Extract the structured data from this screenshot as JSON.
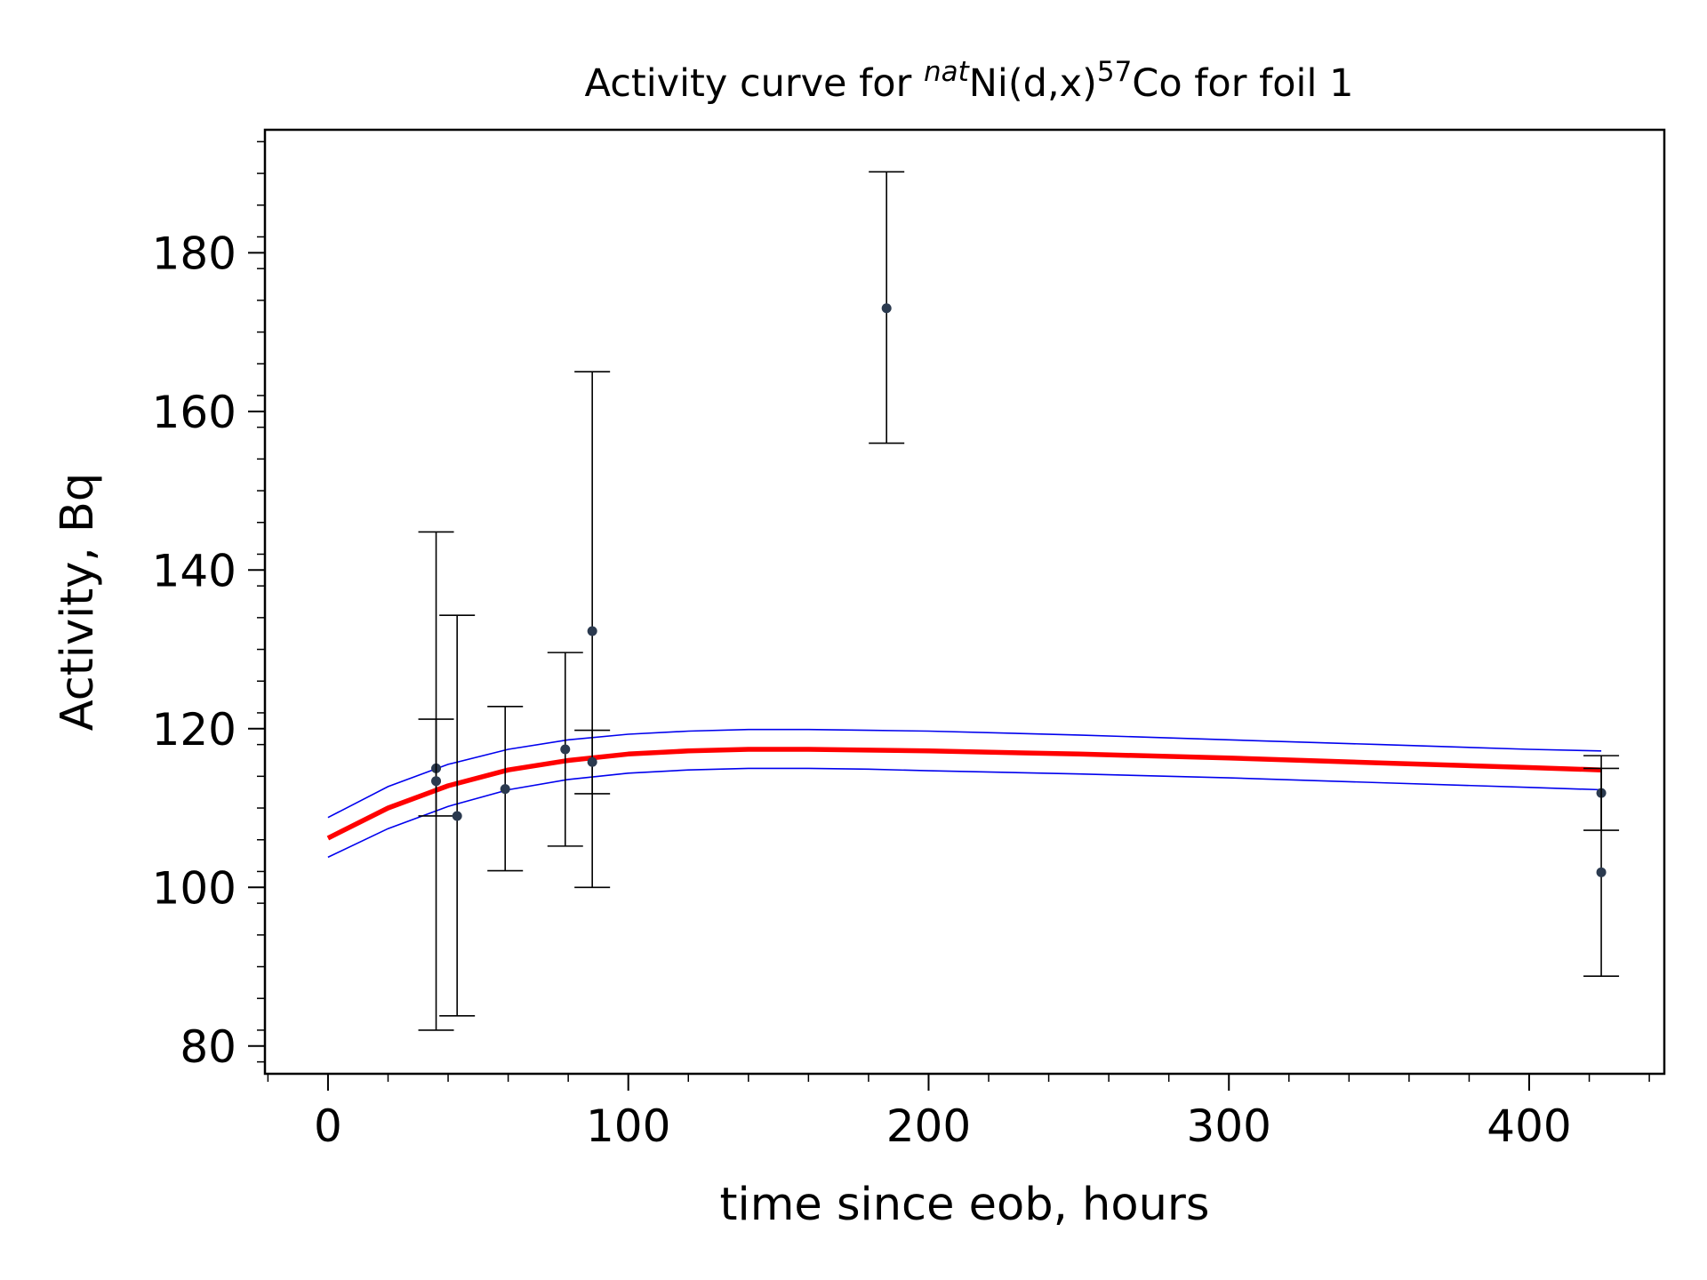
{
  "chart_data": {
    "type": "scatter",
    "title": {
      "prefix": "Activity curve for ",
      "sup1": "nat",
      "mid": "Ni(d,x)",
      "sup2": "57",
      "suffix": "Co for foil 1"
    },
    "xlabel": "time since eob, hours",
    "ylabel": "Activity, Bq",
    "xlim": [
      -21,
      445
    ],
    "ylim": [
      76.5,
      195.5
    ],
    "xticks": [
      0,
      100,
      200,
      300,
      400
    ],
    "yticks": [
      80,
      100,
      120,
      140,
      160,
      180
    ],
    "grid": false,
    "colors": {
      "fit": "#ff0000",
      "band": "#0000ee",
      "points": "#2b3a4f",
      "errorbars": "#000000"
    },
    "series": [
      {
        "kind": "errorbar",
        "points": [
          {
            "x": 36,
            "y": 115.0,
            "lo": 109.0,
            "hi": 121.2
          },
          {
            "x": 36,
            "y": 113.4,
            "lo": 82.0,
            "hi": 144.8
          },
          {
            "x": 43,
            "y": 109.0,
            "lo": 83.8,
            "hi": 134.3
          },
          {
            "x": 59,
            "y": 112.4,
            "lo": 102.1,
            "hi": 122.8
          },
          {
            "x": 79,
            "y": 117.4,
            "lo": 105.2,
            "hi": 129.6
          },
          {
            "x": 88,
            "y": 132.3,
            "lo": 100.0,
            "hi": 165.0
          },
          {
            "x": 88,
            "y": 115.8,
            "lo": 111.8,
            "hi": 119.8
          },
          {
            "x": 186,
            "y": 173.0,
            "lo": 156.0,
            "hi": 190.2
          },
          {
            "x": 424,
            "y": 111.9,
            "lo": 107.2,
            "hi": 116.6
          },
          {
            "x": 424,
            "y": 101.9,
            "lo": 88.8,
            "hi": 115.0
          }
        ]
      },
      {
        "kind": "fit",
        "x": [
          0,
          20,
          40,
          60,
          80,
          100,
          120,
          140,
          160,
          180,
          200,
          250,
          300,
          350,
          400,
          424
        ],
        "y": [
          106.2,
          110.0,
          112.8,
          114.8,
          116.0,
          116.8,
          117.2,
          117.4,
          117.4,
          117.3,
          117.2,
          116.8,
          116.3,
          115.7,
          115.1,
          114.8
        ]
      },
      {
        "kind": "band-upper",
        "x": [
          0,
          20,
          40,
          60,
          80,
          100,
          120,
          140,
          160,
          180,
          200,
          250,
          300,
          350,
          400,
          424
        ],
        "y": [
          108.8,
          112.7,
          115.5,
          117.4,
          118.6,
          119.3,
          119.7,
          119.9,
          119.9,
          119.8,
          119.7,
          119.2,
          118.6,
          118.0,
          117.4,
          117.2
        ]
      },
      {
        "kind": "band-lower",
        "x": [
          0,
          20,
          40,
          60,
          80,
          100,
          120,
          140,
          160,
          180,
          200,
          250,
          300,
          350,
          400,
          424
        ],
        "y": [
          103.8,
          107.4,
          110.2,
          112.3,
          113.6,
          114.4,
          114.8,
          115.0,
          115.0,
          114.9,
          114.7,
          114.3,
          113.8,
          113.2,
          112.6,
          112.3
        ]
      }
    ]
  }
}
